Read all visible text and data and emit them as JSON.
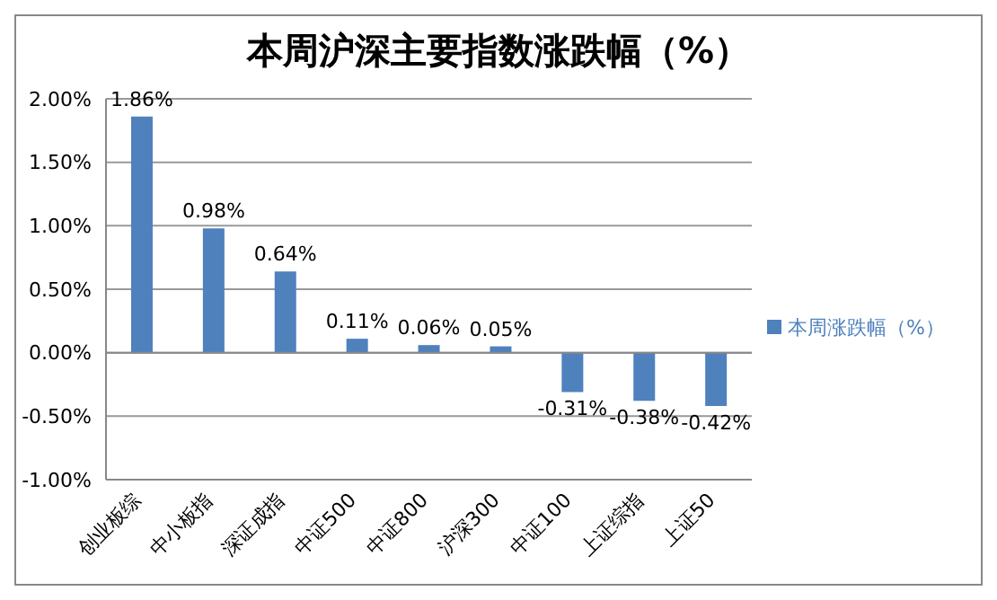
{
  "chart_data": {
    "type": "bar",
    "title": "本周沪深主要指数涨跌幅（%）",
    "categories": [
      "创业板综",
      "中小板指",
      "深证成指",
      "中证500",
      "中证800",
      "沪深300",
      "中证100",
      "上证综指",
      "上证50"
    ],
    "series": [
      {
        "name": "本周涨跌幅（%）",
        "color": "#4f81bd",
        "values": [
          1.86,
          0.98,
          0.64,
          0.11,
          0.06,
          0.05,
          -0.31,
          -0.38,
          -0.42
        ],
        "value_labels": [
          "1.86%",
          "0.98%",
          "0.64%",
          "0.11%",
          "0.06%",
          "0.05%",
          "-0.31%",
          "-0.38%",
          "-0.42%"
        ]
      }
    ],
    "ylim": [
      -1,
      2
    ],
    "yticks": [
      {
        "value": -1,
        "label": "-1.00%"
      },
      {
        "value": -0.5,
        "label": "-0.50%"
      },
      {
        "value": 0,
        "label": "0.00%"
      },
      {
        "value": 0.5,
        "label": "0.50%"
      },
      {
        "value": 1,
        "label": "1.00%"
      },
      {
        "value": 1.5,
        "label": "1.50%"
      },
      {
        "value": 2,
        "label": "2.00%"
      }
    ],
    "grid": "y",
    "legend": "right"
  }
}
